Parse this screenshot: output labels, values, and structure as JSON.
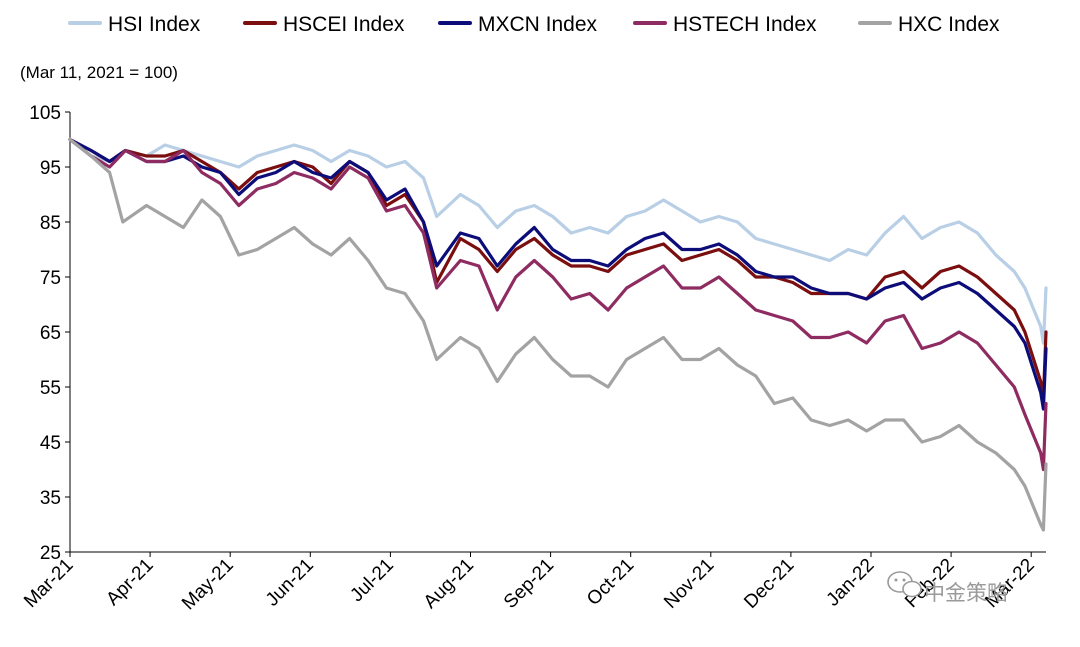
{
  "chart_data": {
    "type": "line",
    "unit_note": "(Mar 11, 2021 = 100)",
    "ylim": [
      25,
      105
    ],
    "yticks": [
      105,
      95,
      85,
      75,
      65,
      55,
      45,
      35,
      25
    ],
    "xlim": [
      "2021-03-11",
      "2022-03-16"
    ],
    "xticks": [
      "Mar-21",
      "Apr-21",
      "May-21",
      "Jun-21",
      "Jul-21",
      "Aug-21",
      "Sep-21",
      "Oct-21",
      "Nov-21",
      "Dec-21",
      "Jan-22",
      "Feb-22",
      "Mar-22"
    ],
    "grid": false,
    "legend_position": "top",
    "series": [
      {
        "name": "HSI Index",
        "color": "#b8cfe6",
        "points": [
          [
            "2021-03-11",
            100
          ],
          [
            "2021-03-19",
            97
          ],
          [
            "2021-03-26",
            96
          ],
          [
            "2021-04-01",
            98
          ],
          [
            "2021-04-09",
            97
          ],
          [
            "2021-04-16",
            99
          ],
          [
            "2021-04-23",
            98
          ],
          [
            "2021-04-30",
            97
          ],
          [
            "2021-05-07",
            96
          ],
          [
            "2021-05-14",
            95
          ],
          [
            "2021-05-21",
            97
          ],
          [
            "2021-05-28",
            98
          ],
          [
            "2021-06-04",
            99
          ],
          [
            "2021-06-11",
            98
          ],
          [
            "2021-06-18",
            96
          ],
          [
            "2021-06-25",
            98
          ],
          [
            "2021-07-02",
            97
          ],
          [
            "2021-07-09",
            95
          ],
          [
            "2021-07-16",
            96
          ],
          [
            "2021-07-23",
            93
          ],
          [
            "2021-07-28",
            86
          ],
          [
            "2021-08-06",
            90
          ],
          [
            "2021-08-13",
            88
          ],
          [
            "2021-08-20",
            84
          ],
          [
            "2021-08-27",
            87
          ],
          [
            "2021-09-03",
            88
          ],
          [
            "2021-09-10",
            86
          ],
          [
            "2021-09-17",
            83
          ],
          [
            "2021-09-24",
            84
          ],
          [
            "2021-10-01",
            83
          ],
          [
            "2021-10-08",
            86
          ],
          [
            "2021-10-15",
            87
          ],
          [
            "2021-10-22",
            89
          ],
          [
            "2021-10-29",
            87
          ],
          [
            "2021-11-05",
            85
          ],
          [
            "2021-11-12",
            86
          ],
          [
            "2021-11-19",
            85
          ],
          [
            "2021-11-26",
            82
          ],
          [
            "2021-12-03",
            81
          ],
          [
            "2021-12-10",
            80
          ],
          [
            "2021-12-17",
            79
          ],
          [
            "2021-12-24",
            78
          ],
          [
            "2021-12-31",
            80
          ],
          [
            "2022-01-07",
            79
          ],
          [
            "2022-01-14",
            83
          ],
          [
            "2022-01-21",
            86
          ],
          [
            "2022-01-28",
            82
          ],
          [
            "2022-02-04",
            84
          ],
          [
            "2022-02-11",
            85
          ],
          [
            "2022-02-18",
            83
          ],
          [
            "2022-02-25",
            79
          ],
          [
            "2022-03-04",
            76
          ],
          [
            "2022-03-08",
            73
          ],
          [
            "2022-03-14",
            66
          ],
          [
            "2022-03-15",
            63
          ],
          [
            "2022-03-16",
            73
          ]
        ]
      },
      {
        "name": "HSCEI Index",
        "color": "#7b0f10",
        "points": [
          [
            "2021-03-11",
            100
          ],
          [
            "2021-03-19",
            98
          ],
          [
            "2021-03-26",
            96
          ],
          [
            "2021-04-01",
            98
          ],
          [
            "2021-04-09",
            97
          ],
          [
            "2021-04-16",
            97
          ],
          [
            "2021-04-23",
            98
          ],
          [
            "2021-04-30",
            96
          ],
          [
            "2021-05-07",
            94
          ],
          [
            "2021-05-14",
            91
          ],
          [
            "2021-05-21",
            94
          ],
          [
            "2021-05-28",
            95
          ],
          [
            "2021-06-04",
            96
          ],
          [
            "2021-06-11",
            95
          ],
          [
            "2021-06-18",
            92
          ],
          [
            "2021-06-25",
            96
          ],
          [
            "2021-07-02",
            94
          ],
          [
            "2021-07-09",
            88
          ],
          [
            "2021-07-16",
            90
          ],
          [
            "2021-07-23",
            85
          ],
          [
            "2021-07-28",
            74
          ],
          [
            "2021-08-06",
            82
          ],
          [
            "2021-08-13",
            80
          ],
          [
            "2021-08-20",
            76
          ],
          [
            "2021-08-27",
            80
          ],
          [
            "2021-09-03",
            82
          ],
          [
            "2021-09-10",
            79
          ],
          [
            "2021-09-17",
            77
          ],
          [
            "2021-09-24",
            77
          ],
          [
            "2021-10-01",
            76
          ],
          [
            "2021-10-08",
            79
          ],
          [
            "2021-10-15",
            80
          ],
          [
            "2021-10-22",
            81
          ],
          [
            "2021-10-29",
            78
          ],
          [
            "2021-11-05",
            79
          ],
          [
            "2021-11-12",
            80
          ],
          [
            "2021-11-19",
            78
          ],
          [
            "2021-11-26",
            75
          ],
          [
            "2021-12-03",
            75
          ],
          [
            "2021-12-10",
            74
          ],
          [
            "2021-12-17",
            72
          ],
          [
            "2021-12-24",
            72
          ],
          [
            "2021-12-31",
            72
          ],
          [
            "2022-01-07",
            71
          ],
          [
            "2022-01-14",
            75
          ],
          [
            "2022-01-21",
            76
          ],
          [
            "2022-01-28",
            73
          ],
          [
            "2022-02-04",
            76
          ],
          [
            "2022-02-11",
            77
          ],
          [
            "2022-02-18",
            75
          ],
          [
            "2022-02-25",
            72
          ],
          [
            "2022-03-04",
            69
          ],
          [
            "2022-03-08",
            65
          ],
          [
            "2022-03-14",
            56
          ],
          [
            "2022-03-15",
            53
          ],
          [
            "2022-03-16",
            65
          ]
        ]
      },
      {
        "name": "MXCN Index",
        "color": "#0d0d7a",
        "points": [
          [
            "2021-03-11",
            100
          ],
          [
            "2021-03-19",
            98
          ],
          [
            "2021-03-26",
            96
          ],
          [
            "2021-04-01",
            98
          ],
          [
            "2021-04-09",
            96
          ],
          [
            "2021-04-16",
            96
          ],
          [
            "2021-04-23",
            97
          ],
          [
            "2021-04-30",
            95
          ],
          [
            "2021-05-07",
            94
          ],
          [
            "2021-05-14",
            90
          ],
          [
            "2021-05-21",
            93
          ],
          [
            "2021-05-28",
            94
          ],
          [
            "2021-06-04",
            96
          ],
          [
            "2021-06-11",
            94
          ],
          [
            "2021-06-18",
            93
          ],
          [
            "2021-06-25",
            96
          ],
          [
            "2021-07-02",
            94
          ],
          [
            "2021-07-09",
            89
          ],
          [
            "2021-07-16",
            91
          ],
          [
            "2021-07-23",
            85
          ],
          [
            "2021-07-28",
            77
          ],
          [
            "2021-08-06",
            83
          ],
          [
            "2021-08-13",
            82
          ],
          [
            "2021-08-20",
            77
          ],
          [
            "2021-08-27",
            81
          ],
          [
            "2021-09-03",
            84
          ],
          [
            "2021-09-10",
            80
          ],
          [
            "2021-09-17",
            78
          ],
          [
            "2021-09-24",
            78
          ],
          [
            "2021-10-01",
            77
          ],
          [
            "2021-10-08",
            80
          ],
          [
            "2021-10-15",
            82
          ],
          [
            "2021-10-22",
            83
          ],
          [
            "2021-10-29",
            80
          ],
          [
            "2021-11-05",
            80
          ],
          [
            "2021-11-12",
            81
          ],
          [
            "2021-11-19",
            79
          ],
          [
            "2021-11-26",
            76
          ],
          [
            "2021-12-03",
            75
          ],
          [
            "2021-12-10",
            75
          ],
          [
            "2021-12-17",
            73
          ],
          [
            "2021-12-24",
            72
          ],
          [
            "2021-12-31",
            72
          ],
          [
            "2022-01-07",
            71
          ],
          [
            "2022-01-14",
            73
          ],
          [
            "2022-01-21",
            74
          ],
          [
            "2022-01-28",
            71
          ],
          [
            "2022-02-04",
            73
          ],
          [
            "2022-02-11",
            74
          ],
          [
            "2022-02-18",
            72
          ],
          [
            "2022-02-25",
            69
          ],
          [
            "2022-03-04",
            66
          ],
          [
            "2022-03-08",
            63
          ],
          [
            "2022-03-14",
            54
          ],
          [
            "2022-03-15",
            51
          ],
          [
            "2022-03-16",
            62
          ]
        ]
      },
      {
        "name": "HSTECH Index",
        "color": "#8e2c62",
        "points": [
          [
            "2021-03-11",
            100
          ],
          [
            "2021-03-19",
            97
          ],
          [
            "2021-03-26",
            95
          ],
          [
            "2021-04-01",
            98
          ],
          [
            "2021-04-09",
            96
          ],
          [
            "2021-04-16",
            96
          ],
          [
            "2021-04-23",
            98
          ],
          [
            "2021-04-30",
            94
          ],
          [
            "2021-05-07",
            92
          ],
          [
            "2021-05-14",
            88
          ],
          [
            "2021-05-21",
            91
          ],
          [
            "2021-05-28",
            92
          ],
          [
            "2021-06-04",
            94
          ],
          [
            "2021-06-11",
            93
          ],
          [
            "2021-06-18",
            91
          ],
          [
            "2021-06-25",
            95
          ],
          [
            "2021-07-02",
            93
          ],
          [
            "2021-07-09",
            87
          ],
          [
            "2021-07-16",
            88
          ],
          [
            "2021-07-23",
            83
          ],
          [
            "2021-07-28",
            73
          ],
          [
            "2021-08-06",
            78
          ],
          [
            "2021-08-13",
            77
          ],
          [
            "2021-08-20",
            69
          ],
          [
            "2021-08-27",
            75
          ],
          [
            "2021-09-03",
            78
          ],
          [
            "2021-09-10",
            75
          ],
          [
            "2021-09-17",
            71
          ],
          [
            "2021-09-24",
            72
          ],
          [
            "2021-10-01",
            69
          ],
          [
            "2021-10-08",
            73
          ],
          [
            "2021-10-15",
            75
          ],
          [
            "2021-10-22",
            77
          ],
          [
            "2021-10-29",
            73
          ],
          [
            "2021-11-05",
            73
          ],
          [
            "2021-11-12",
            75
          ],
          [
            "2021-11-19",
            72
          ],
          [
            "2021-11-26",
            69
          ],
          [
            "2021-12-03",
            68
          ],
          [
            "2021-12-10",
            67
          ],
          [
            "2021-12-17",
            64
          ],
          [
            "2021-12-24",
            64
          ],
          [
            "2021-12-31",
            65
          ],
          [
            "2022-01-07",
            63
          ],
          [
            "2022-01-14",
            67
          ],
          [
            "2022-01-21",
            68
          ],
          [
            "2022-01-28",
            62
          ],
          [
            "2022-02-04",
            63
          ],
          [
            "2022-02-11",
            65
          ],
          [
            "2022-02-18",
            63
          ],
          [
            "2022-02-25",
            59
          ],
          [
            "2022-03-04",
            55
          ],
          [
            "2022-03-08",
            50
          ],
          [
            "2022-03-14",
            43
          ],
          [
            "2022-03-15",
            40
          ],
          [
            "2022-03-16",
            52
          ]
        ]
      },
      {
        "name": "HXC Index",
        "color": "#a3a3a3",
        "points": [
          [
            "2021-03-11",
            100
          ],
          [
            "2021-03-19",
            97
          ],
          [
            "2021-03-26",
            94
          ],
          [
            "2021-03-31",
            85
          ],
          [
            "2021-04-09",
            88
          ],
          [
            "2021-04-16",
            86
          ],
          [
            "2021-04-23",
            84
          ],
          [
            "2021-04-30",
            89
          ],
          [
            "2021-05-07",
            86
          ],
          [
            "2021-05-14",
            79
          ],
          [
            "2021-05-21",
            80
          ],
          [
            "2021-05-28",
            82
          ],
          [
            "2021-06-04",
            84
          ],
          [
            "2021-06-11",
            81
          ],
          [
            "2021-06-18",
            79
          ],
          [
            "2021-06-25",
            82
          ],
          [
            "2021-07-02",
            78
          ],
          [
            "2021-07-09",
            73
          ],
          [
            "2021-07-16",
            72
          ],
          [
            "2021-07-23",
            67
          ],
          [
            "2021-07-28",
            60
          ],
          [
            "2021-08-06",
            64
          ],
          [
            "2021-08-13",
            62
          ],
          [
            "2021-08-20",
            56
          ],
          [
            "2021-08-27",
            61
          ],
          [
            "2021-09-03",
            64
          ],
          [
            "2021-09-10",
            60
          ],
          [
            "2021-09-17",
            57
          ],
          [
            "2021-09-24",
            57
          ],
          [
            "2021-10-01",
            55
          ],
          [
            "2021-10-08",
            60
          ],
          [
            "2021-10-15",
            62
          ],
          [
            "2021-10-22",
            64
          ],
          [
            "2021-10-29",
            60
          ],
          [
            "2021-11-05",
            60
          ],
          [
            "2021-11-12",
            62
          ],
          [
            "2021-11-19",
            59
          ],
          [
            "2021-11-26",
            57
          ],
          [
            "2021-12-03",
            52
          ],
          [
            "2021-12-10",
            53
          ],
          [
            "2021-12-17",
            49
          ],
          [
            "2021-12-24",
            48
          ],
          [
            "2021-12-31",
            49
          ],
          [
            "2022-01-07",
            47
          ],
          [
            "2022-01-14",
            49
          ],
          [
            "2022-01-21",
            49
          ],
          [
            "2022-01-28",
            45
          ],
          [
            "2022-02-04",
            46
          ],
          [
            "2022-02-11",
            48
          ],
          [
            "2022-02-18",
            45
          ],
          [
            "2022-02-25",
            43
          ],
          [
            "2022-03-04",
            40
          ],
          [
            "2022-03-08",
            37
          ],
          [
            "2022-03-14",
            30
          ],
          [
            "2022-03-15",
            29
          ],
          [
            "2022-03-16",
            41
          ]
        ]
      }
    ]
  },
  "watermark": "中金策略",
  "watermark_icon": "wechat-icon"
}
